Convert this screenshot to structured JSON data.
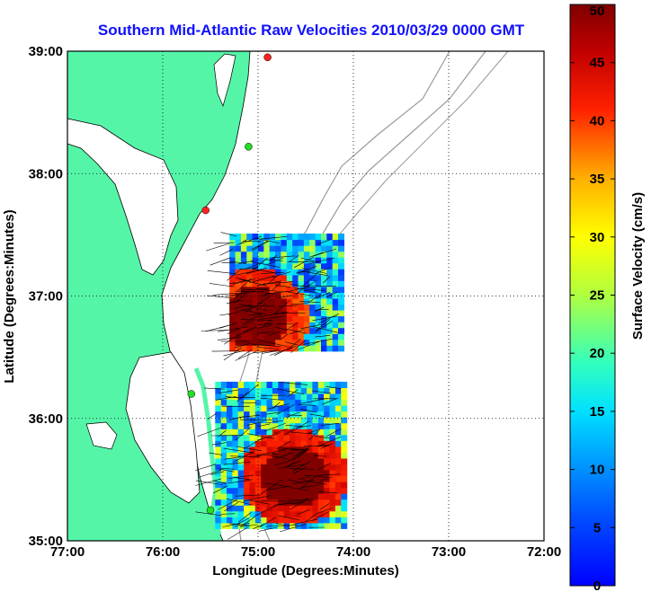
{
  "chart_data": {
    "type": "map",
    "title": "Southern Mid-Atlantic Raw Velocities 2010/03/29 0000 GMT",
    "xlabel": "Longitude (Degrees:Minutes)",
    "ylabel": "Latitude (Degrees:Minutes)",
    "xlim": [
      -77.0,
      -72.0
    ],
    "ylim": [
      35.0,
      39.0
    ],
    "x_ticks": [
      {
        "value": -77.0,
        "label": "77:00"
      },
      {
        "value": -76.0,
        "label": "76:00"
      },
      {
        "value": -75.0,
        "label": "75:00"
      },
      {
        "value": -74.0,
        "label": "74:00"
      },
      {
        "value": -73.0,
        "label": "73:00"
      },
      {
        "value": -72.0,
        "label": "72:00"
      }
    ],
    "y_ticks": [
      {
        "value": 35.0,
        "label": "35:00"
      },
      {
        "value": 36.0,
        "label": "36:00"
      },
      {
        "value": 37.0,
        "label": "37:00"
      },
      {
        "value": 38.0,
        "label": "38:00"
      },
      {
        "value": 39.0,
        "label": "39:00"
      }
    ],
    "grid": "dotted",
    "land_color": "#55f5a8",
    "colorbar": {
      "label": "Surface Velocity (cm/s)",
      "min": 0,
      "max": 50,
      "units": "cm/s",
      "ticks": [
        0,
        5,
        10,
        15,
        20,
        25,
        30,
        35,
        40,
        45,
        50
      ],
      "colormap": "jet"
    },
    "sites": [
      {
        "lon": -74.9,
        "lat": 38.95,
        "color": "#ff2020"
      },
      {
        "lon": -75.1,
        "lat": 38.22,
        "color": "#22dd22"
      },
      {
        "lon": -75.55,
        "lat": 37.7,
        "color": "#ff2020"
      },
      {
        "lon": -75.7,
        "lat": 36.2,
        "color": "#22dd22"
      },
      {
        "lon": -75.5,
        "lat": 35.25,
        "color": "#22dd22"
      }
    ],
    "velocity_regions": [
      {
        "name": "north",
        "lon": [
          -75.3,
          -74.15
        ],
        "lat": [
          36.55,
          37.5
        ],
        "speeds_cm_s": [
          3,
          10,
          14,
          22,
          38,
          48
        ]
      },
      {
        "name": "south",
        "lon": [
          -75.45,
          -74.1
        ],
        "lat": [
          35.1,
          36.3
        ],
        "speeds_cm_s": [
          5,
          10,
          15,
          25,
          40,
          50
        ]
      }
    ]
  }
}
